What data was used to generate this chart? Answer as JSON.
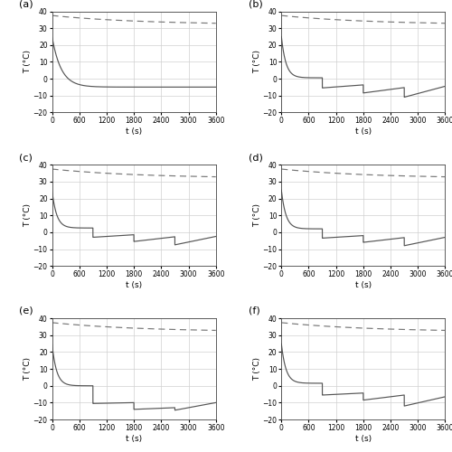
{
  "xlim": [
    0,
    3600
  ],
  "ylim": [
    -20,
    40
  ],
  "xticks": [
    0,
    600,
    1200,
    1800,
    2400,
    3000,
    3600
  ],
  "yticks": [
    -20,
    -10,
    0,
    10,
    20,
    30,
    40
  ],
  "xlabel": "t (s)",
  "ylabel": "T (°C)",
  "panels": [
    "(a)",
    "(b)",
    "(c)",
    "(d)",
    "(e)",
    "(f)"
  ],
  "solid_color": "#555555",
  "dashed_color": "#777777",
  "grid_color": "#d0d0d0",
  "background": "#ffffff",
  "panel_a": {
    "init": 25,
    "tau": 200,
    "plateau": -5.0
  },
  "dashed": {
    "start": 37.5,
    "end": 32.0,
    "tau": 2000
  },
  "panels_bcdef": [
    {
      "label": "b",
      "init": 25,
      "tau1": 100,
      "plateau0": 0.5,
      "step_times": [
        900,
        1800,
        2700
      ],
      "levels_before_step": [
        0.5,
        -3.0,
        -5.0
      ],
      "levels_after_step": [
        -5.5,
        -8.5,
        -11.0
      ],
      "recovery_rate": [
        1.8,
        3.2,
        6.5
      ],
      "final_level": -4.5
    },
    {
      "label": "c",
      "init": 25,
      "tau1": 100,
      "plateau0": 2.5,
      "step_times": [
        900,
        1800,
        2700
      ],
      "levels_before_step": [
        2.5,
        -0.5,
        -2.5
      ],
      "levels_after_step": [
        -3.0,
        -5.5,
        -7.5
      ],
      "recovery_rate": [
        1.5,
        2.8,
        5.0
      ],
      "final_level": -2.5
    },
    {
      "label": "d",
      "init": 25,
      "tau1": 100,
      "plateau0": 2.0,
      "step_times": [
        900,
        1800,
        2700
      ],
      "levels_before_step": [
        2.0,
        -1.0,
        -3.0
      ],
      "levels_after_step": [
        -3.5,
        -6.0,
        -8.0
      ],
      "recovery_rate": [
        1.5,
        2.8,
        5.0
      ],
      "final_level": -3.0
    },
    {
      "label": "e",
      "init": 25,
      "tau1": 100,
      "plateau0": 0.0,
      "step_times": [
        900,
        1800,
        2700
      ],
      "levels_before_step": [
        0.0,
        -9.5,
        -11.5
      ],
      "levels_after_step": [
        -10.5,
        -14.0,
        -14.5
      ],
      "recovery_rate": [
        0.5,
        1.0,
        4.5
      ],
      "final_level": -10.0
    },
    {
      "label": "f",
      "init": 25,
      "tau1": 100,
      "plateau0": 1.5,
      "step_times": [
        900,
        1800,
        2700
      ],
      "levels_before_step": [
        1.5,
        -3.0,
        -5.5
      ],
      "levels_after_step": [
        -5.5,
        -8.5,
        -12.0
      ],
      "recovery_rate": [
        1.2,
        3.0,
        5.5
      ],
      "final_level": -7.0
    }
  ]
}
